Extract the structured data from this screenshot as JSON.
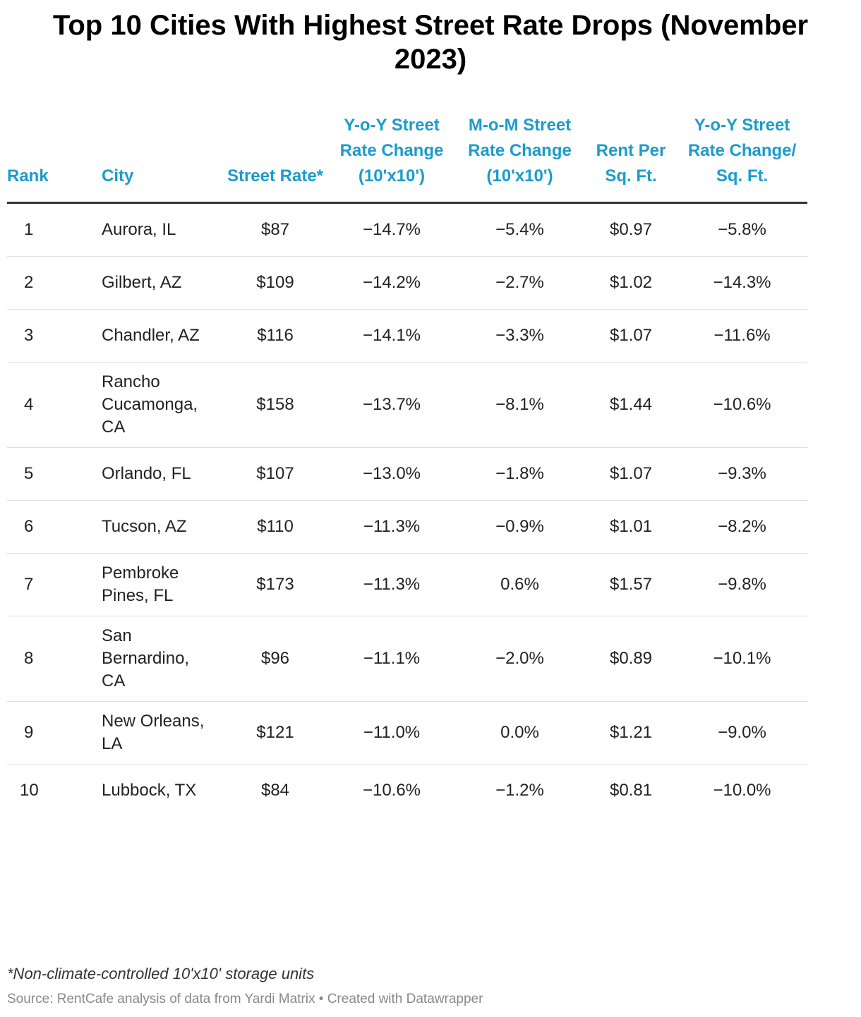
{
  "header": {
    "title": "Top 10 Cities With Highest Street Rate Drops (November 2023)"
  },
  "table": {
    "columns": [
      "Rank",
      "City",
      "Street Rate*",
      "Y-o-Y Street Rate Change (10'x10')",
      "M-o-M Street Rate Change (10'x10')",
      "Rent Per Sq. Ft.",
      "Y-o-Y Street Rate Change/ Sq. Ft."
    ],
    "rows": [
      [
        "1",
        "Aurora, IL",
        "$87",
        "−14.7%",
        "−5.4%",
        "$0.97",
        "−5.8%"
      ],
      [
        "2",
        "Gilbert, AZ",
        "$109",
        "−14.2%",
        "−2.7%",
        "$1.02",
        "−14.3%"
      ],
      [
        "3",
        "Chandler, AZ",
        "$116",
        "−14.1%",
        "−3.3%",
        "$1.07",
        "−11.6%"
      ],
      [
        "4",
        "Rancho Cucamonga, CA",
        "$158",
        "−13.7%",
        "−8.1%",
        "$1.44",
        "−10.6%"
      ],
      [
        "5",
        "Orlando, FL",
        "$107",
        "−13.0%",
        "−1.8%",
        "$1.07",
        "−9.3%"
      ],
      [
        "6",
        "Tucson, AZ",
        "$110",
        "−11.3%",
        "−0.9%",
        "$1.01",
        "−8.2%"
      ],
      [
        "7",
        "Pembroke Pines, FL",
        "$173",
        "−11.3%",
        "0.6%",
        "$1.57",
        "−9.8%"
      ],
      [
        "8",
        "San Bernardino, CA",
        "$96",
        "−11.1%",
        "−2.0%",
        "$0.89",
        "−10.1%"
      ],
      [
        "9",
        "New Orleans, LA",
        "$121",
        "−11.0%",
        "0.0%",
        "$1.21",
        "−9.0%"
      ],
      [
        "10",
        "Lubbock, TX",
        "$84",
        "−10.6%",
        "−1.2%",
        "$0.81",
        "−10.0%"
      ]
    ]
  },
  "footer": {
    "note": "*Non-climate-controlled 10'x10' storage units",
    "source": "Source: RentCafe analysis of data from Yardi Matrix • Created with Datawrapper"
  }
}
